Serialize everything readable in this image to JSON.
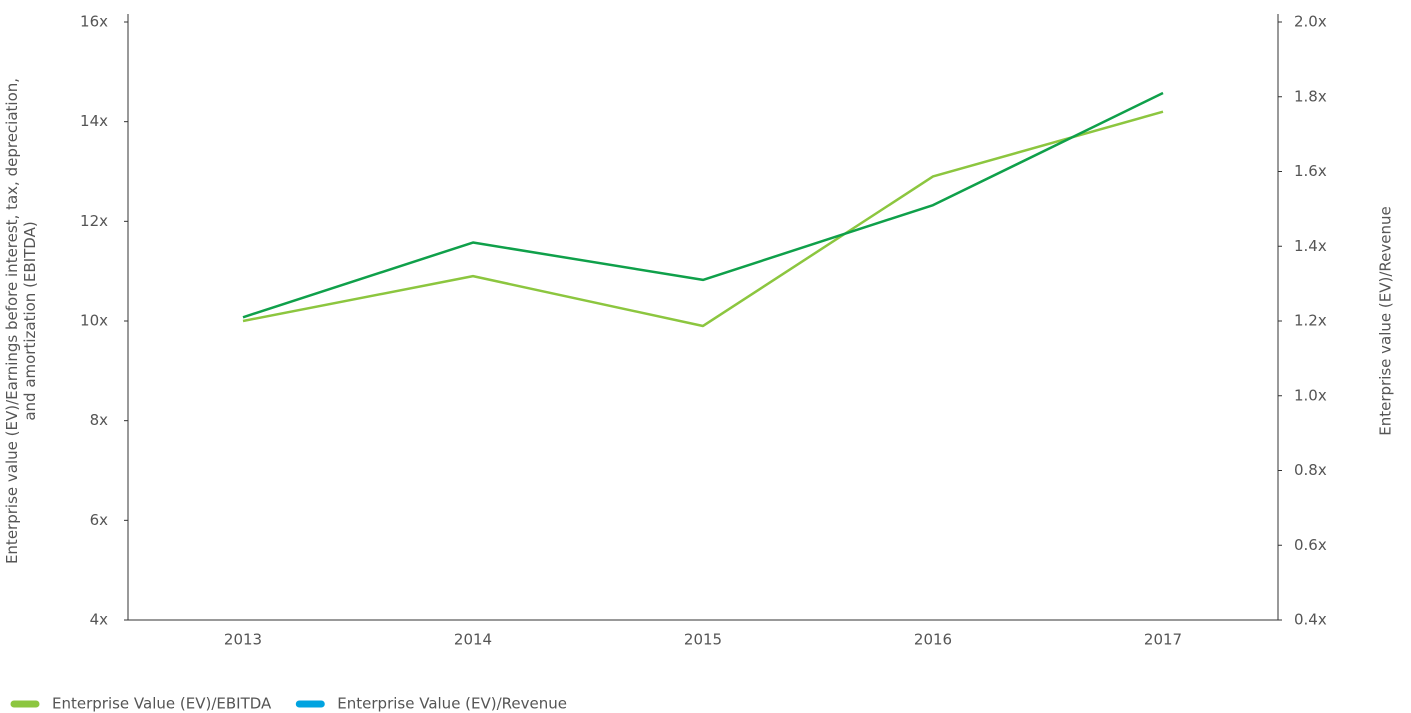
{
  "chart_data": {
    "type": "line",
    "categories": [
      "2013",
      "2014",
      "2015",
      "2016",
      "2017"
    ],
    "series": [
      {
        "name": "Enterprise Value (EV)/EBITDA",
        "color": "#8cc63f",
        "legend_color": "#8cc63f",
        "axis": "y",
        "values": [
          10.0,
          10.9,
          9.9,
          12.9,
          14.2
        ]
      },
      {
        "name": "Enterprise Value (EV)/Revenue",
        "color": "#0fa04a",
        "legend_color": "#00a3e0",
        "axis": "y2",
        "values": [
          1.21,
          1.41,
          1.31,
          1.51,
          1.81
        ]
      }
    ],
    "ylabel": [
      "Enterprise value (EV)/Earnings before interest, tax, depreciation,",
      "and amortization (EBITDA)"
    ],
    "y2label": "Enterprise value (EV)/Revenue",
    "ylim": [
      4,
      16
    ],
    "yticks": [
      {
        "value": 4,
        "label": "4x"
      },
      {
        "value": 6,
        "label": "6x"
      },
      {
        "value": 8,
        "label": "8x"
      },
      {
        "value": 10,
        "label": "10x"
      },
      {
        "value": 12,
        "label": "12x"
      },
      {
        "value": 14,
        "label": "14x"
      },
      {
        "value": 16,
        "label": "16x"
      }
    ],
    "y2lim": [
      0.4,
      2.0
    ],
    "y2ticks": [
      {
        "value": 0.4,
        "label": "0.4x"
      },
      {
        "value": 0.6,
        "label": "0.6x"
      },
      {
        "value": 0.8,
        "label": "0.8x"
      },
      {
        "value": 1.0,
        "label": "1.0x"
      },
      {
        "value": 1.2,
        "label": "1.2x"
      },
      {
        "value": 1.4,
        "label": "1.4x"
      },
      {
        "value": 1.6,
        "label": "1.6x"
      },
      {
        "value": 1.8,
        "label": "1.8x"
      },
      {
        "value": 2.0,
        "label": "2.0x"
      }
    ],
    "grid": false,
    "legend": "bottom-left"
  }
}
